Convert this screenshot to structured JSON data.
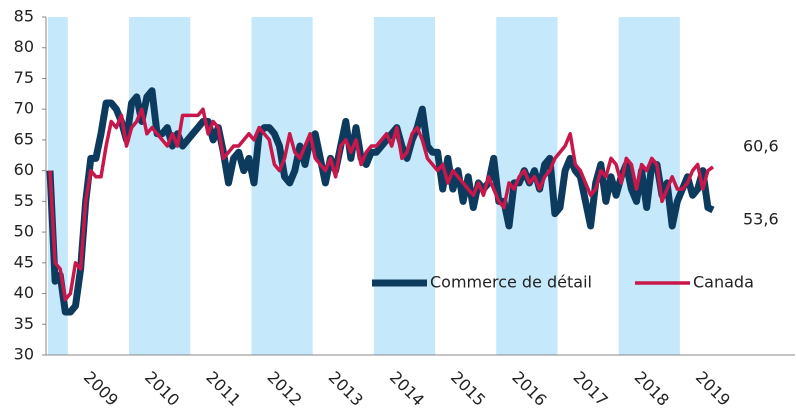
{
  "chart_data": {
    "type": "line",
    "categories": [
      null,
      null,
      null,
      null,
      null,
      null,
      null,
      null,
      null,
      "2009",
      null,
      null,
      null,
      null,
      null,
      null,
      null,
      null,
      null,
      null,
      null,
      "2010",
      null,
      null,
      null,
      null,
      null,
      null,
      null,
      null,
      null,
      null,
      null,
      "2011",
      null,
      null,
      null,
      null,
      null,
      null,
      null,
      null,
      null,
      null,
      null,
      "2012",
      null,
      null,
      null,
      null,
      null,
      null,
      null,
      null,
      null,
      null,
      null,
      "2013",
      null,
      null,
      null,
      null,
      null,
      null,
      null,
      null,
      null,
      null,
      null,
      "2014",
      null,
      null,
      null,
      null,
      null,
      null,
      null,
      null,
      null,
      null,
      null,
      "2015",
      null,
      null,
      null,
      null,
      null,
      null,
      null,
      null,
      null,
      null,
      null,
      "2016",
      null,
      null,
      null,
      null,
      null,
      null,
      null,
      null,
      null,
      null,
      null,
      "2017",
      null,
      null,
      null,
      null,
      null,
      null,
      null,
      null,
      null,
      null,
      null,
      "2018",
      null,
      null,
      null,
      null,
      null,
      null,
      null,
      null,
      null,
      null,
      null,
      "2019",
      null
    ],
    "series": [
      {
        "name": "Commerce de détail",
        "color": "#0d3b5e",
        "values": [
          60,
          42,
          43,
          37,
          37,
          38,
          44,
          55,
          62,
          62,
          66,
          71,
          71,
          70,
          68,
          65,
          71,
          72,
          68,
          72,
          73,
          66,
          66,
          67,
          64,
          66,
          64,
          65,
          66,
          67,
          68,
          68,
          65,
          67,
          63,
          58,
          62,
          63,
          60,
          62,
          58,
          66,
          67,
          67,
          66,
          64,
          59,
          58,
          60,
          64,
          61,
          65,
          66,
          62,
          58,
          62,
          60,
          64,
          68,
          62,
          67,
          62,
          61,
          63,
          63,
          64,
          65,
          66,
          67,
          64,
          62,
          65,
          67,
          70,
          64,
          63,
          63,
          57,
          62,
          57,
          60,
          55,
          59,
          54,
          58,
          57,
          58,
          62,
          55,
          55,
          51,
          58,
          58,
          60,
          58,
          60,
          57,
          61,
          62,
          53,
          54,
          60,
          62,
          60,
          59,
          55,
          51,
          58,
          61,
          55,
          59,
          56,
          59,
          61,
          57,
          55,
          60,
          54,
          61,
          61,
          56,
          58,
          51,
          55,
          57,
          59,
          56,
          57,
          60,
          54,
          53.6
        ],
        "value_labels": [
          null,
          null,
          null,
          null,
          null,
          null,
          null,
          null,
          null,
          null,
          null,
          null,
          null,
          null,
          null,
          null,
          null,
          null,
          null,
          null,
          null,
          null,
          null,
          null,
          null,
          null,
          null,
          null,
          null,
          null,
          null,
          null,
          null,
          null,
          null,
          null,
          null,
          null,
          null,
          null,
          null,
          null,
          null,
          null,
          null,
          null,
          null,
          null,
          null,
          null,
          null,
          null,
          null,
          null,
          null,
          null,
          null,
          null,
          null,
          null,
          null,
          null,
          null,
          null,
          null,
          null,
          null,
          null,
          null,
          null,
          null,
          null,
          null,
          null,
          null,
          null,
          null,
          null,
          null,
          null,
          null,
          null,
          null,
          null,
          null,
          null,
          null,
          null,
          null,
          null,
          null,
          null,
          null,
          null,
          null,
          null,
          null,
          null,
          null,
          null,
          null,
          null,
          null,
          null,
          null,
          null,
          null,
          null,
          null,
          null,
          null,
          null,
          null,
          null,
          null,
          null,
          null,
          null,
          null,
          null,
          null,
          null,
          null,
          null,
          null,
          null,
          null,
          null,
          null,
          null,
          "53,6"
        ]
      },
      {
        "name": "Canada",
        "color": "#c8174a",
        "values": [
          60,
          45,
          44,
          39,
          40,
          45,
          44,
          55,
          60,
          59,
          59,
          64,
          68,
          67,
          69,
          64,
          67,
          68,
          70,
          66,
          67,
          66,
          65,
          64,
          66,
          64,
          69,
          69,
          69,
          69,
          70,
          66,
          68,
          67,
          62,
          63,
          64,
          64,
          65,
          66,
          65,
          67,
          66,
          65,
          61,
          60,
          62,
          66,
          63,
          62,
          64,
          66,
          62,
          61,
          60,
          62,
          59,
          64,
          65,
          63,
          65,
          61,
          63,
          64,
          64,
          65,
          66,
          64,
          67,
          62,
          63,
          66,
          67,
          65,
          62,
          61,
          60,
          61,
          58,
          60,
          59,
          58,
          57,
          56,
          58,
          56,
          59,
          57,
          55,
          54,
          58,
          57,
          59,
          60,
          58,
          59,
          57,
          59,
          60,
          62,
          63,
          64,
          66,
          61,
          60,
          58,
          56,
          57,
          60,
          59,
          62,
          61,
          58,
          62,
          61,
          57,
          61,
          60,
          62,
          61,
          55,
          57,
          59,
          57,
          57,
          58,
          60,
          61,
          57,
          60,
          60.6
        ],
        "value_labels": [
          null,
          null,
          null,
          null,
          null,
          null,
          null,
          null,
          null,
          null,
          null,
          null,
          null,
          null,
          null,
          null,
          null,
          null,
          null,
          null,
          null,
          null,
          null,
          null,
          null,
          null,
          null,
          null,
          null,
          null,
          null,
          null,
          null,
          null,
          null,
          null,
          null,
          null,
          null,
          null,
          null,
          null,
          null,
          null,
          null,
          null,
          null,
          null,
          null,
          null,
          null,
          null,
          null,
          null,
          null,
          null,
          null,
          null,
          null,
          null,
          null,
          null,
          null,
          null,
          null,
          null,
          null,
          null,
          null,
          null,
          null,
          null,
          null,
          null,
          null,
          null,
          null,
          null,
          null,
          null,
          null,
          null,
          null,
          null,
          null,
          null,
          null,
          null,
          null,
          null,
          null,
          null,
          null,
          null,
          null,
          null,
          null,
          null,
          null,
          null,
          null,
          null,
          null,
          null,
          null,
          null,
          null,
          null,
          null,
          null,
          null,
          null,
          null,
          null,
          null,
          null,
          null,
          null,
          null,
          null,
          null,
          null,
          null,
          null,
          null,
          null,
          null,
          null,
          null,
          null,
          "60,6"
        ]
      }
    ],
    "ylim": [
      30,
      85
    ],
    "yticks": [
      30,
      35,
      40,
      45,
      50,
      55,
      60,
      65,
      70,
      75,
      80,
      85
    ]
  }
}
